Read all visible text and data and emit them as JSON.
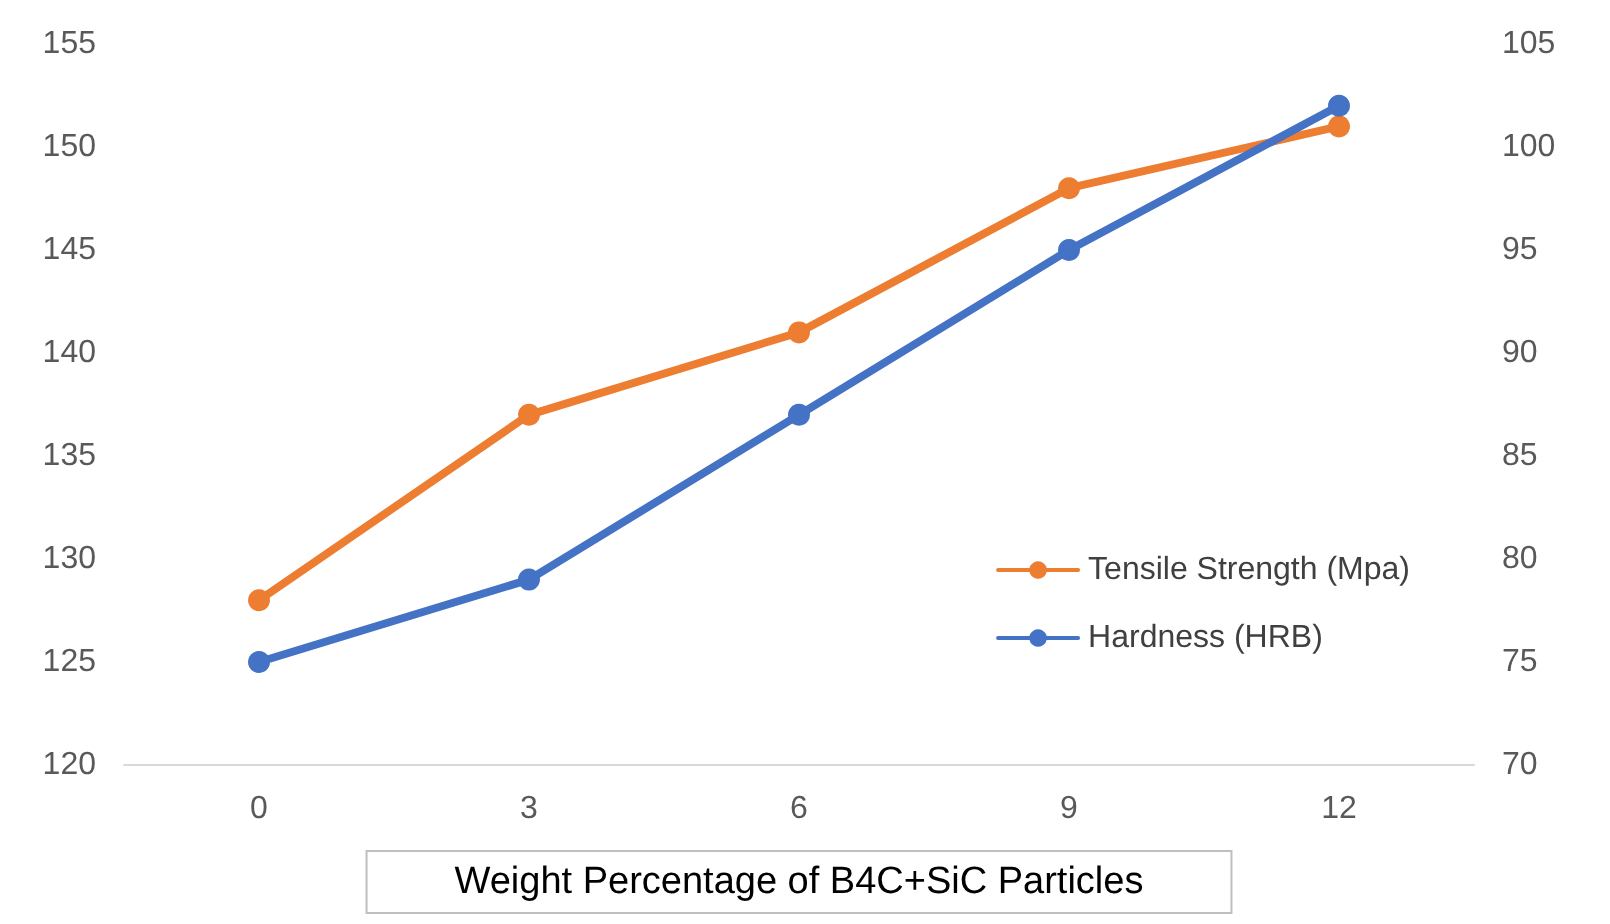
{
  "chart_data": {
    "type": "line",
    "xlabel": "Weight Percentage of B4C+SiC Particles",
    "categories": [
      "0",
      "3",
      "6",
      "9",
      "12"
    ],
    "series": [
      {
        "name": "Tensile Strength (Mpa)",
        "color": "#ed7d31",
        "values": [
          128,
          137,
          141,
          148,
          151
        ]
      },
      {
        "name": "Hardness (HRB)",
        "color": "#4472c4",
        "values": [
          75,
          79,
          87,
          95,
          102
        ],
        "axis": "y2"
      }
    ],
    "ylim": [
      120,
      155
    ],
    "yticks": [
      120,
      125,
      130,
      135,
      140,
      145,
      150,
      155
    ],
    "y2lim": [
      70,
      105
    ],
    "y2ticks": [
      70,
      75,
      80,
      85,
      90,
      95,
      100,
      105
    ],
    "grid": false,
    "legend": "right",
    "marker": "circle",
    "line_style": "solid"
  }
}
